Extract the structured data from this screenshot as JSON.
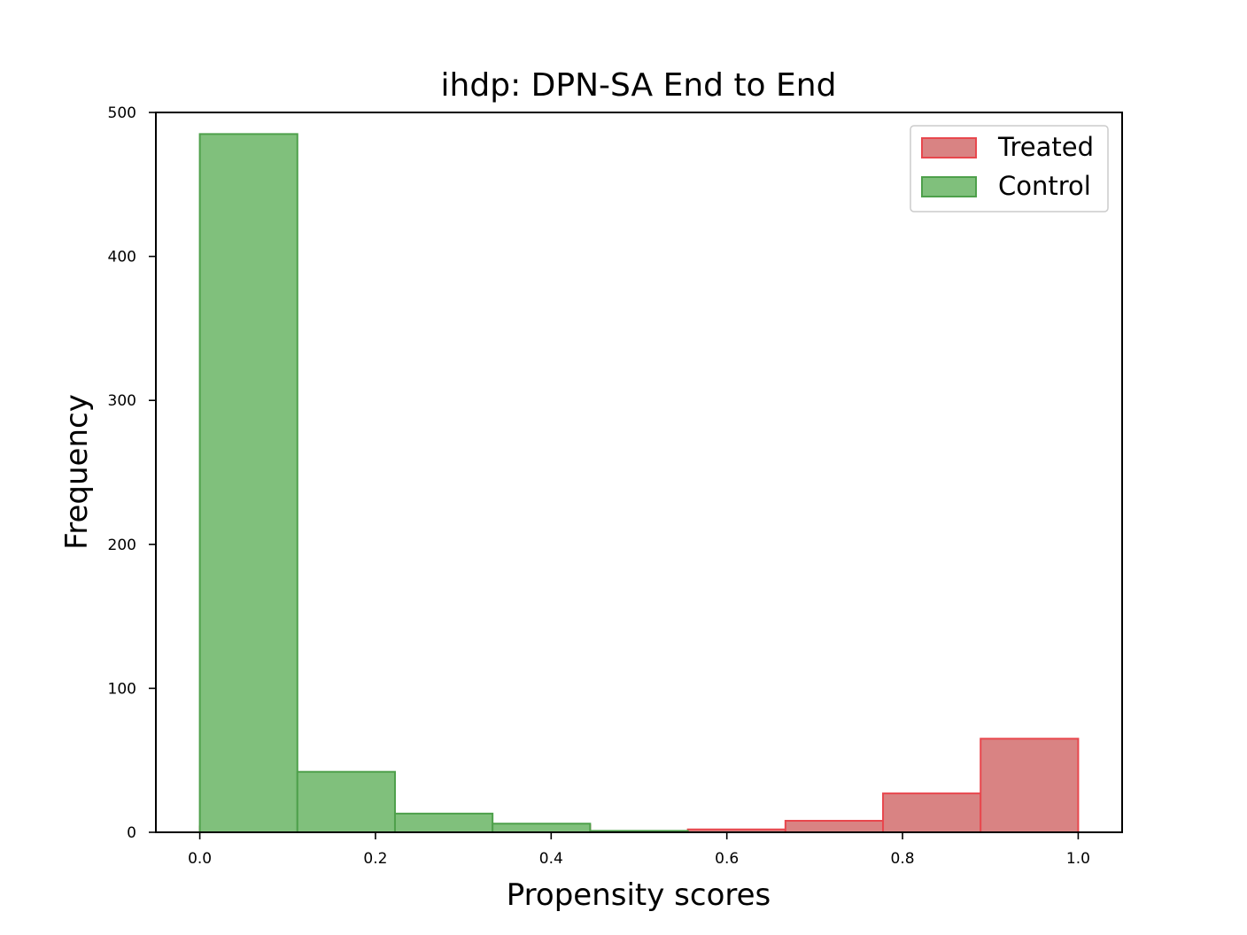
{
  "chart_data": {
    "type": "bar",
    "title": "ihdp: DPN-SA End to End",
    "xlabel": "Propensity scores",
    "ylabel": "Frequency",
    "xlim": [
      -0.05,
      1.05
    ],
    "ylim": [
      0,
      500
    ],
    "xticks": [
      0.0,
      0.2,
      0.4,
      0.6,
      0.8,
      1.0
    ],
    "xtick_labels": [
      "0.0",
      "0.2",
      "0.4",
      "0.6",
      "0.8",
      "1.0"
    ],
    "yticks": [
      0,
      100,
      200,
      300,
      400,
      500
    ],
    "ytick_labels": [
      "0",
      "100",
      "200",
      "300",
      "400",
      "500"
    ],
    "bin_edges": [
      0.0,
      0.1111,
      0.2222,
      0.3333,
      0.4444,
      0.5556,
      0.6667,
      0.7778,
      0.8889,
      1.0
    ],
    "legend_position": "top-right",
    "grid": false,
    "series": [
      {
        "name": "Treated",
        "fill": "#d98383",
        "stroke": "#e8474d",
        "values": [
          4,
          4,
          6,
          5,
          0,
          2,
          8,
          27,
          65
        ]
      },
      {
        "name": "Control",
        "fill": "#80c07c",
        "stroke": "#4ea04b",
        "values": [
          485,
          42,
          13,
          6,
          1,
          0,
          0,
          0,
          0
        ]
      }
    ]
  }
}
